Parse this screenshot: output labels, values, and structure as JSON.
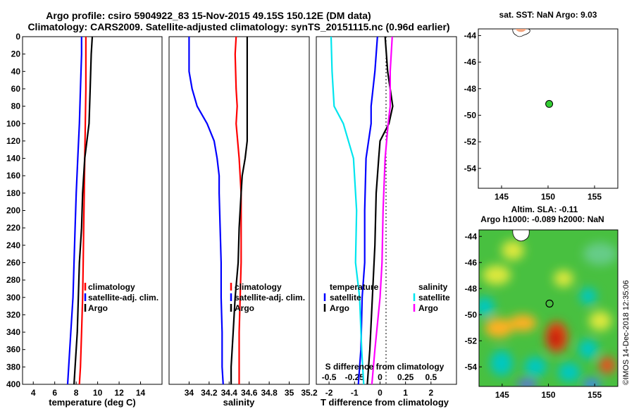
{
  "title": {
    "line1": "Argo profile: csiro 5904922_83 15-Nov-2015 49.15S 150.12E (DM data)",
    "line2": "Climatology: CARS2009. Satellite-adjusted climatology: synTS_20151115.nc (0.96d earlier)"
  },
  "side": {
    "sst_title": "sat. SST: NaN Argo: 9.03",
    "sla_title1": "Altim. SLA: -0.11",
    "sla_title2": "Argo h1000: -0.089 h2000: NaN",
    "credit": "©IMOS 14-Dec-2018 12:35:06"
  },
  "colors": {
    "argo": "#000000",
    "climatology": "#ff0000",
    "satellite": "#0000ff",
    "sat_salinity": "#00e5ee",
    "argo_salinity": "#ff00ff",
    "marker": "#33cc33"
  },
  "chart_data": [
    {
      "type": "line",
      "name": "temperature",
      "xlabel": "temperature (deg C)",
      "ylabel": "",
      "xlim": [
        3,
        16
      ],
      "ylim": [
        400,
        0
      ],
      "xticks": [
        "4",
        "6",
        "8",
        "10",
        "12",
        "14"
      ],
      "yticks": [
        "0",
        "20",
        "40",
        "60",
        "80",
        "100",
        "120",
        "140",
        "160",
        "180",
        "200",
        "220",
        "240",
        "260",
        "280",
        "300",
        "320",
        "340",
        "360",
        "380",
        "400"
      ],
      "legend": [
        "climatology",
        "satellite-adj. clim.",
        "Argo"
      ],
      "series": [
        {
          "name": "climatology",
          "depth": [
            0,
            20,
            60,
            100,
            140,
            180,
            220,
            260,
            300,
            340,
            380,
            400
          ],
          "values": [
            8.9,
            8.9,
            8.9,
            8.85,
            8.8,
            8.75,
            8.7,
            8.65,
            8.6,
            8.5,
            8.4,
            8.3
          ]
        },
        {
          "name": "satellite-adj. clim.",
          "depth": [
            0,
            20,
            60,
            100,
            140,
            180,
            220,
            260,
            300,
            340,
            380,
            400
          ],
          "values": [
            8.5,
            8.5,
            8.4,
            8.3,
            8.15,
            8.0,
            7.9,
            7.8,
            7.7,
            7.5,
            7.3,
            7.2
          ]
        },
        {
          "name": "Argo",
          "depth": [
            0,
            20,
            60,
            100,
            140,
            160,
            180,
            220,
            260,
            300,
            340,
            380,
            400
          ],
          "values": [
            9.5,
            9.4,
            9.3,
            9.2,
            8.8,
            8.7,
            8.6,
            8.5,
            8.3,
            8.2,
            8.1,
            7.9,
            7.8
          ]
        }
      ]
    },
    {
      "type": "line",
      "name": "salinity",
      "xlabel": "salinity",
      "xlim": [
        33.8,
        35.2
      ],
      "ylim": [
        400,
        0
      ],
      "xticks": [
        "34",
        "34.2",
        "34.4",
        "34.6",
        "34.8",
        "35",
        "35.2"
      ],
      "legend": [
        "climatology",
        "satellite-adj. clim.",
        "Argo"
      ],
      "series": [
        {
          "name": "climatology",
          "depth": [
            0,
            20,
            60,
            80,
            100,
            140,
            180,
            220,
            260,
            300,
            340,
            380,
            400
          ],
          "values": [
            34.47,
            34.46,
            34.47,
            34.48,
            34.47,
            34.5,
            34.52,
            34.52,
            34.52,
            34.51,
            34.5,
            34.5,
            34.5
          ]
        },
        {
          "name": "satellite-adj. clim.",
          "depth": [
            0,
            40,
            60,
            80,
            100,
            120,
            140,
            160,
            180,
            220,
            260,
            300,
            340,
            380,
            400
          ],
          "values": [
            34.0,
            34.0,
            34.03,
            34.08,
            34.18,
            34.25,
            34.28,
            34.3,
            34.3,
            34.31,
            34.32,
            34.32,
            34.33,
            34.33,
            34.34
          ]
        },
        {
          "name": "Argo",
          "depth": [
            0,
            20,
            60,
            100,
            120,
            140,
            160,
            180,
            220,
            260,
            300,
            340,
            380,
            400
          ],
          "values": [
            34.58,
            34.58,
            34.58,
            34.58,
            34.58,
            34.56,
            34.53,
            34.52,
            34.5,
            34.49,
            34.46,
            34.44,
            34.42,
            34.42
          ]
        }
      ]
    },
    {
      "type": "line",
      "name": "differences",
      "xlabel": "T difference from climatology",
      "xlim": [
        -2.5,
        3
      ],
      "ylim": [
        400,
        0
      ],
      "xticks": [
        "-2",
        "-1",
        "0",
        "1",
        "2"
      ],
      "top_xlabel": "S difference from climatology",
      "top_xticks": [
        "-0.5",
        "-0.25",
        "0",
        "0.25",
        "0.5"
      ],
      "legend_titles": [
        "temperature",
        "salinity"
      ],
      "legend": [
        "satellite",
        "Argo",
        "satellite",
        "Argo"
      ],
      "series": [
        {
          "name": "T satellite",
          "depth": [
            0,
            40,
            80,
            100,
            140,
            200,
            260,
            300,
            360,
            400
          ],
          "values": [
            -0.1,
            -0.2,
            -0.35,
            -0.35,
            -0.55,
            -0.6,
            -0.6,
            -0.7,
            -0.75,
            -0.85
          ]
        },
        {
          "name": "T Argo",
          "depth": [
            0,
            40,
            80,
            100,
            120,
            140,
            180,
            240,
            300,
            360,
            400
          ],
          "values": [
            0.2,
            0.3,
            0.5,
            0.35,
            0.0,
            -0.05,
            -0.15,
            -0.2,
            -0.3,
            -0.4,
            -0.5
          ]
        },
        {
          "name": "S satellite",
          "depth": [
            0,
            40,
            80,
            100,
            140,
            200,
            260,
            300,
            360,
            400
          ],
          "values": [
            -0.48,
            -0.47,
            -0.45,
            -0.36,
            -0.26,
            -0.23,
            -0.24,
            -0.2,
            -0.18,
            -0.16
          ]
        },
        {
          "name": "S Argo",
          "depth": [
            0,
            40,
            80,
            100,
            140,
            200,
            260,
            300,
            360,
            400
          ],
          "values": [
            0.12,
            0.1,
            0.1,
            0.08,
            0.05,
            0.03,
            0.02,
            0.0,
            -0.05,
            -0.08
          ]
        }
      ]
    },
    {
      "type": "scatter",
      "name": "sst map",
      "title": "sat. SST: NaN Argo: 9.03",
      "xlim": [
        142.5,
        157.5
      ],
      "ylim": [
        -55.5,
        -43.5
      ],
      "xticks": [
        "145",
        "150",
        "155"
      ],
      "yticks": [
        "-44",
        "-46",
        "-48",
        "-50",
        "-52",
        "-54"
      ],
      "points": [
        {
          "x": 150.12,
          "y": -49.15
        }
      ]
    },
    {
      "type": "heatmap",
      "name": "sla map",
      "title": "Altim. SLA: -0.11",
      "xlim": [
        142.5,
        157.5
      ],
      "ylim": [
        -55.5,
        -43.5
      ],
      "xticks": [
        "145",
        "150",
        "155"
      ],
      "yticks": [
        "-44",
        "-46",
        "-48",
        "-50",
        "-52",
        "-54"
      ],
      "points": [
        {
          "x": 150.12,
          "y": -49.15
        }
      ]
    }
  ]
}
